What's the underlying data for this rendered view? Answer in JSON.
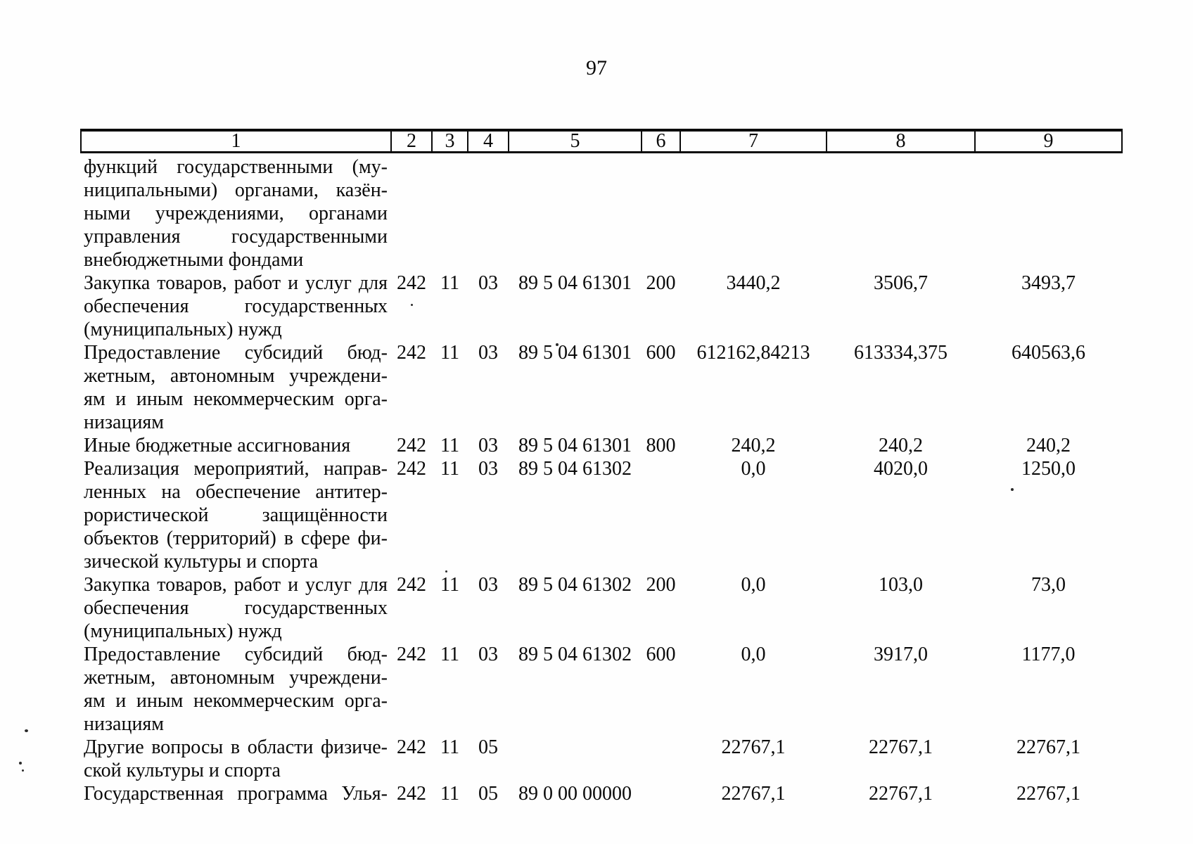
{
  "page_number": "97",
  "table": {
    "header_cells": [
      "1",
      "2",
      "3",
      "4",
      "5",
      "6",
      "7",
      "8",
      "9"
    ],
    "rows": [
      {
        "lines": [
          "функций государственными (му-",
          "ниципальными) органами, казён-",
          "ными учреждениями, органами",
          "управления государственными",
          "внебюджетными фондами"
        ],
        "justify_last": false,
        "cells": [
          "",
          "",
          "",
          "",
          "",
          "",
          "",
          ""
        ]
      },
      {
        "lines": [
          "Закупка товаров, работ и услуг для",
          "обеспечения государственных",
          "(муниципальных) нужд"
        ],
        "justify_last": false,
        "cells": [
          "242",
          "11",
          "03",
          "89 5 04 61301",
          "200",
          "3440,2",
          "3506,7",
          "3493,7"
        ]
      },
      {
        "lines": [
          "Предоставление субсидий бюд-",
          "жетным, автономным учреждени-",
          "ям и иным некоммерческим орга-",
          "низациям"
        ],
        "justify_last": false,
        "cells": [
          "242",
          "11",
          "03",
          "89 5 04 61301",
          "600",
          "612162,84213",
          "613334,375",
          "640563,6"
        ]
      },
      {
        "lines": [
          "Иные бюджетные ассигнования"
        ],
        "justify_last": false,
        "cells": [
          "242",
          "11",
          "03",
          "89 5 04 61301",
          "800",
          "240,2",
          "240,2",
          "240,2"
        ]
      },
      {
        "lines": [
          "Реализация мероприятий, направ-",
          "ленных на обеспечение антитер-",
          "рористической защищённости",
          "объектов (территорий) в сфере фи-",
          "зической культуры и спорта"
        ],
        "justify_last": false,
        "cells": [
          "242",
          "11",
          "03",
          "89 5 04 61302",
          "",
          "0,0",
          "4020,0",
          "1250,0"
        ]
      },
      {
        "lines": [
          "Закупка товаров, работ и услуг для",
          "обеспечения государственных",
          "(муниципальных) нужд"
        ],
        "justify_last": false,
        "cells": [
          "242",
          "11",
          "03",
          "89 5 04 61302",
          "200",
          "0,0",
          "103,0",
          "73,0"
        ]
      },
      {
        "lines": [
          "Предоставление субсидий бюд-",
          "жетным, автономным учреждени-",
          "ям и иным некоммерческим орга-",
          "низациям"
        ],
        "justify_last": false,
        "cells": [
          "242",
          "11",
          "03",
          "89 5 04 61302",
          "600",
          "0,0",
          "3917,0",
          "1177,0"
        ]
      },
      {
        "lines": [
          "Другие вопросы в области физиче-",
          "ской культуры и спорта"
        ],
        "justify_last": false,
        "cells": [
          "242",
          "11",
          "05",
          "",
          "",
          "22767,1",
          "22767,1",
          "22767,1"
        ]
      },
      {
        "lines": [
          "Государственная программа Улья-"
        ],
        "justify_last": true,
        "cells": [
          "242",
          "11",
          "05",
          "89 0 00 00000",
          "",
          "22767,1",
          "22767,1",
          "22767,1"
        ]
      }
    ]
  }
}
